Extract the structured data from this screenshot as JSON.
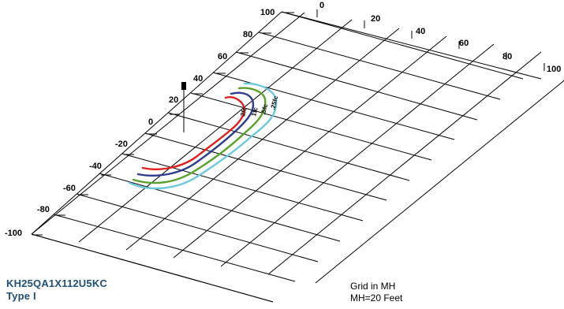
{
  "fixture": {
    "catalog_number": "KH25QA1X112U5KC",
    "type": "Type I"
  },
  "grid": {
    "unit_label": "Grid in MH",
    "mounting_height": "MH=20 Feet"
  },
  "axes": {
    "longitudinal_ticks": [
      "100",
      "80",
      "60",
      "40",
      "20",
      "0",
      "-20",
      "-40",
      "-60",
      "-80",
      "-100"
    ],
    "transverse_ticks": [
      "0",
      "20",
      "40",
      "60",
      "80",
      "100"
    ]
  },
  "contours": [
    {
      "name": "2fc",
      "label": "2fc",
      "color": "#e02020"
    },
    {
      "name": "1fc",
      "label": "1fc",
      "color": "#2e3c8c"
    },
    {
      "name": ".5fc",
      "label": ".5fc",
      "color": "#5aa02c"
    },
    {
      "name": ".25fc",
      "label": ".25fc",
      "color": "#6ec8dc"
    }
  ]
}
